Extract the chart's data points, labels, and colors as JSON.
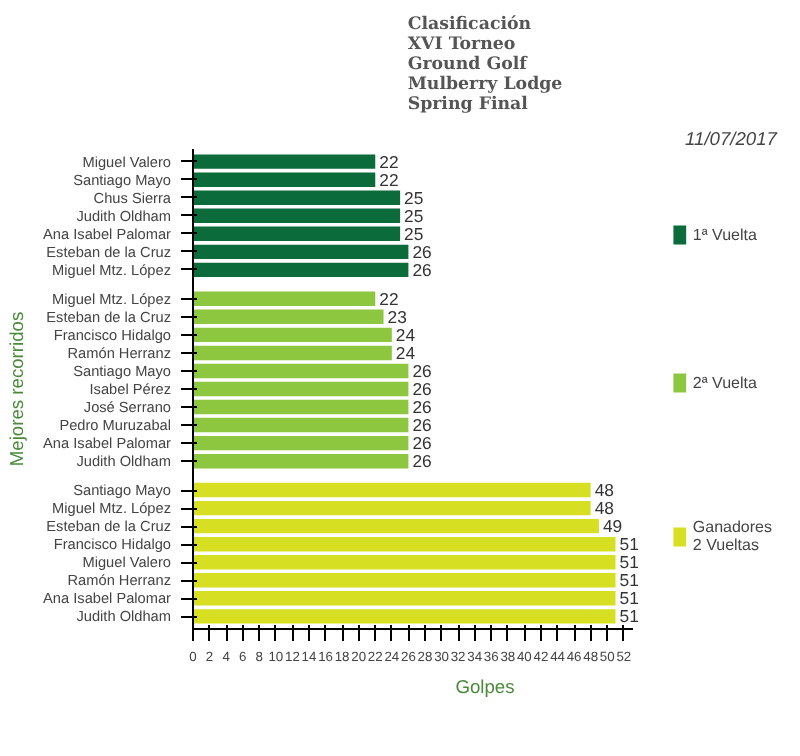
{
  "chart_data": {
    "type": "bar",
    "orientation": "horizontal",
    "title": "Clasificación\nXVI Torneo\nGround Golf\nMulberry Lodge\nSpring Final",
    "xlabel": "Golpes",
    "ylabel": "Mejores recorridos",
    "annotations": [
      "11/07/2017"
    ],
    "categories": [
      "Miguel Valero",
      "Santiago Mayo",
      "Chus Sierra",
      "Judith Oldham",
      "Ana Isabel Palomar",
      "Esteban de la Cruz",
      "Miguel Mtz. López",
      "Miguel Mtz. López",
      "Esteban de la Cruz",
      "Francisco Hidalgo",
      "Ramón Herranz",
      "Santiago Mayo",
      "Isabel Pérez",
      "José Serrano",
      "Pedro Muruzabal",
      "Ana Isabel Palomar",
      "Judith Oldham",
      "Santiago Mayo",
      "Miguel Mtz. López",
      "Esteban de la Cruz",
      "Francisco Hidalgo",
      "Miguel Valero",
      "Ramón Herranz",
      "Ana Isabel Palomar",
      "Judith Oldham"
    ],
    "series": [
      {
        "name": "1ª Vuelta",
        "color": "#0b6b3a",
        "values": [
          22,
          22,
          25,
          25,
          25,
          26,
          26,
          null,
          null,
          null,
          null,
          null,
          null,
          null,
          null,
          null,
          null,
          null,
          null,
          null,
          null,
          null,
          null,
          null,
          null
        ]
      },
      {
        "name": "2ª Vuelta",
        "color": "#8dc63f",
        "values": [
          null,
          null,
          null,
          null,
          null,
          null,
          null,
          22,
          23,
          24,
          24,
          26,
          26,
          26,
          26,
          26,
          26,
          null,
          null,
          null,
          null,
          null,
          null,
          null,
          null
        ]
      },
      {
        "name": "Ganadores 2 Vueltas",
        "color": "#d7df23",
        "values": [
          null,
          null,
          null,
          null,
          null,
          null,
          null,
          null,
          null,
          null,
          null,
          null,
          null,
          null,
          null,
          null,
          null,
          48,
          48,
          49,
          51,
          51,
          51,
          51,
          51
        ]
      }
    ],
    "xlim": [
      0,
      53
    ],
    "xticks": [
      0,
      2,
      4,
      6,
      8,
      10,
      12,
      14,
      16,
      18,
      20,
      22,
      24,
      26,
      28,
      30,
      32,
      34,
      36,
      38,
      40,
      42,
      44,
      46,
      48,
      50,
      52
    ],
    "data_labels": true,
    "legend": "right",
    "grid": false
  }
}
